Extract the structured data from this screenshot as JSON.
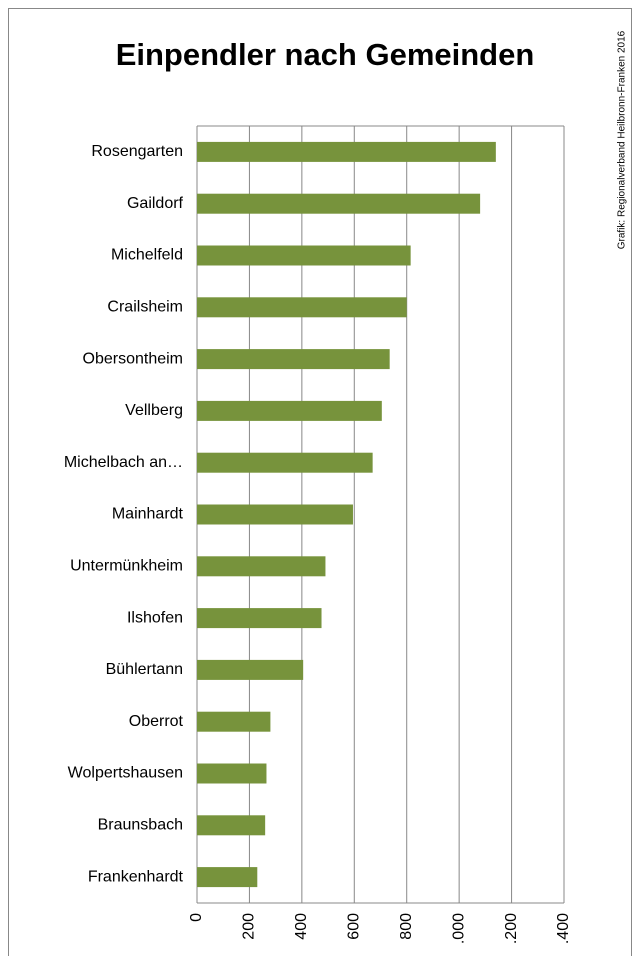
{
  "chart_data": {
    "type": "bar",
    "orientation": "horizontal",
    "title": "Einpendler nach Gemeinden",
    "source": "Grafik: Regionalverband Heilbronn-Franken 2016",
    "categories": [
      "Rosengarten",
      "Gaildorf",
      "Michelfeld",
      "Crailsheim",
      "Obersontheim",
      "Vellberg",
      "Michelbach an…",
      "Mainhardt",
      "Untermünkheim",
      "Ilshofen",
      "Bühlertann",
      "Oberrot",
      "Wolpertshausen",
      "Braunsbach",
      "Frankenhardt"
    ],
    "values": [
      1140,
      1080,
      815,
      800,
      735,
      705,
      670,
      595,
      490,
      475,
      405,
      280,
      265,
      260,
      230
    ],
    "color": "#77933c",
    "xlim": [
      0,
      1400
    ],
    "xticks": [
      0,
      200,
      400,
      600,
      800,
      {
        "value": 1000,
        "label": ".000"
      },
      {
        "value": 1200,
        "label": ".200"
      },
      {
        "value": 1400,
        "label": ".400"
      }
    ],
    "grid": true
  }
}
